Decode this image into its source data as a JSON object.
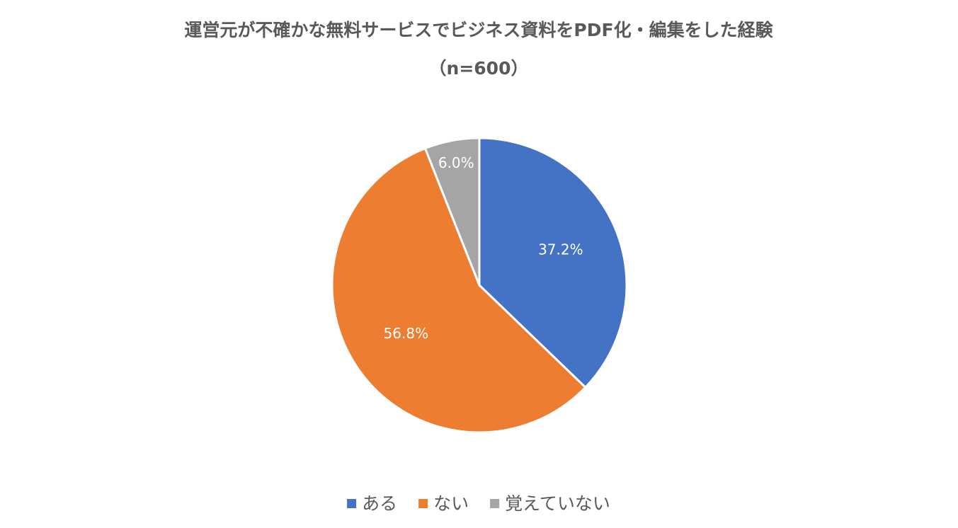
{
  "chart_data": {
    "type": "pie",
    "title": "運営元が不確かな無料サービスでビジネス資料をPDF化・編集をした経験",
    "subtitle": "（n=600）",
    "categories": [
      "ある",
      "ない",
      "覚えていない"
    ],
    "values": [
      37.2,
      56.8,
      6.0
    ],
    "value_labels": [
      "37.2%",
      "56.8%",
      "6.0%"
    ],
    "colors": [
      "#4472c4",
      "#ed7d31",
      "#a5a5a5"
    ],
    "legend": "bottom"
  }
}
